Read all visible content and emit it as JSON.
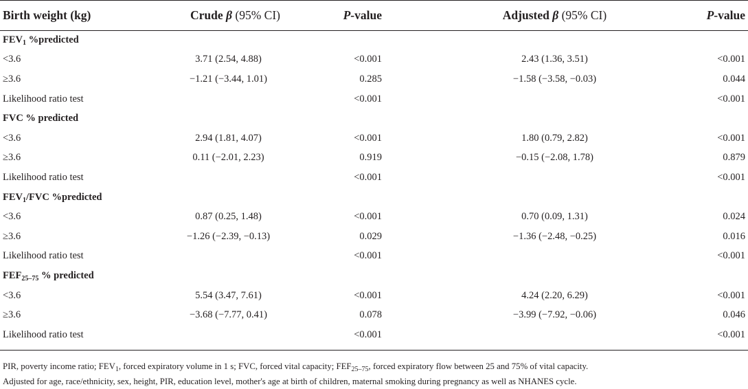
{
  "table": {
    "headers": {
      "col0": "Birth weight (kg)",
      "col1_main": "Crude",
      "col1_beta": "β",
      "col1_ci": "(95% CI)",
      "col2_p": "P",
      "col2_rest": "-value",
      "col3_main": "Adjusted",
      "col3_beta": "β",
      "col3_ci": "(95% CI)",
      "col4_p": "P",
      "col4_rest": "-value"
    },
    "sections": [
      {
        "title_pre": "FEV",
        "title_sub": "1",
        "title_post": " %predicted",
        "rows": [
          {
            "label": "<3.6",
            "crude": "3.71 (2.54, 4.88)",
            "p_crude": "<0.001",
            "adjusted": "2.43 (1.36, 3.51)",
            "p_adj": "<0.001"
          },
          {
            "label": "≥3.6",
            "crude": "−1.21 (−3.44, 1.01)",
            "p_crude": "0.285",
            "adjusted": "−1.58 (−3.58, −0.03)",
            "p_adj": "0.044"
          },
          {
            "label": "Likelihood ratio test",
            "crude": "",
            "p_crude": "<0.001",
            "adjusted": "",
            "p_adj": "<0.001"
          }
        ]
      },
      {
        "title_pre": "FVC % predicted",
        "title_sub": "",
        "title_post": "",
        "rows": [
          {
            "label": "<3.6",
            "crude": "2.94 (1.81, 4.07)",
            "p_crude": "<0.001",
            "adjusted": "1.80 (0.79, 2.82)",
            "p_adj": "<0.001"
          },
          {
            "label": "≥3.6",
            "crude": "0.11 (−2.01, 2.23)",
            "p_crude": "0.919",
            "adjusted": "−0.15 (−2.08, 1.78)",
            "p_adj": "0.879"
          },
          {
            "label": "Likelihood ratio test",
            "crude": "",
            "p_crude": "<0.001",
            "adjusted": "",
            "p_adj": "<0.001"
          }
        ]
      },
      {
        "title_pre": "FEV",
        "title_sub": "1",
        "title_post": "/FVC %predicted",
        "rows": [
          {
            "label": "<3.6",
            "crude": "0.87 (0.25, 1.48)",
            "p_crude": "<0.001",
            "adjusted": "0.70 (0.09, 1.31)",
            "p_adj": "0.024"
          },
          {
            "label": "≥3.6",
            "crude": "−1.26 (−2.39, −0.13)",
            "p_crude": "0.029",
            "adjusted": "−1.36 (−2.48, −0.25)",
            "p_adj": "0.016"
          },
          {
            "label": "Likelihood ratio test",
            "crude": "",
            "p_crude": "<0.001",
            "adjusted": "",
            "p_adj": "<0.001"
          }
        ]
      },
      {
        "title_pre": "FEF",
        "title_sub": "25–75",
        "title_post": " % predicted",
        "rows": [
          {
            "label": "<3.6",
            "crude": "5.54 (3.47, 7.61)",
            "p_crude": "<0.001",
            "adjusted": "4.24 (2.20, 6.29)",
            "p_adj": "<0.001"
          },
          {
            "label": "≥3.6",
            "crude": "−3.68 (−7.77, 0.41)",
            "p_crude": "0.078",
            "adjusted": "−3.99 (−7.92, −0.06)",
            "p_adj": "0.046"
          },
          {
            "label": "Likelihood ratio test",
            "crude": "",
            "p_crude": "<0.001",
            "adjusted": "",
            "p_adj": "<0.001"
          }
        ]
      }
    ]
  },
  "footnotes": {
    "line1": {
      "a": "PIR, poverty income ratio; FEV",
      "a_sub": "1",
      "b": ", forced expiratory volume in 1 s; FVC, forced vital capacity; FEF",
      "b_sub": "25–75",
      "c": ", forced expiratory flow between 25 and 75% of vital capacity."
    },
    "line2": "Adjusted for age, race/ethnicity, sex, height, PIR, education level, mother's age at birth of children, maternal smoking during pregnancy as well as NHANES cycle."
  }
}
